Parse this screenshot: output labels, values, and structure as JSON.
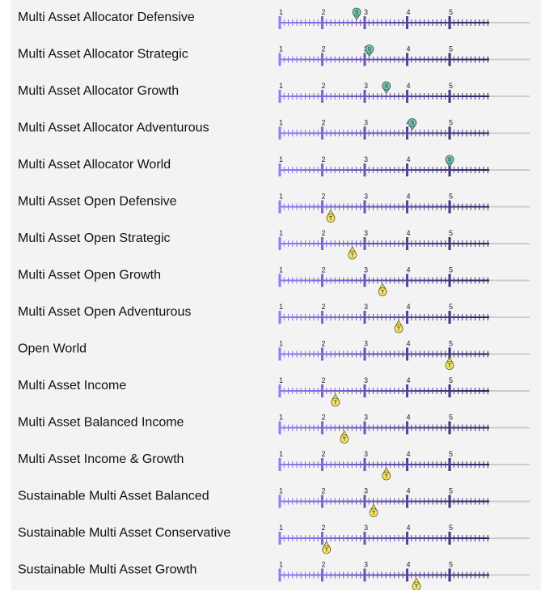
{
  "scale": {
    "xlim": [
      1,
      5
    ],
    "ticks": [
      1,
      2,
      3,
      4,
      5
    ]
  },
  "rows": [
    {
      "name": "Multi Asset Allocator Defensive",
      "marker": "S",
      "value": 2.81
    },
    {
      "name": "Multi Asset Allocator Strategic",
      "marker": "S",
      "value": 3.11
    },
    {
      "name": "Multi Asset Allocator Growth",
      "marker": "S",
      "value": 3.51
    },
    {
      "name": "Multi Asset Allocator Adventurous",
      "marker": "S",
      "value": 4.12
    },
    {
      "name": "Multi Asset Allocator World",
      "marker": "S",
      "value": 5.0
    },
    {
      "name": "Multi Asset Open Defensive",
      "marker": "T",
      "value": 2.2
    },
    {
      "name": "Multi Asset Open Strategic",
      "marker": "T",
      "value": 2.71
    },
    {
      "name": "Multi Asset Open Growth",
      "marker": "T",
      "value": 3.42
    },
    {
      "name": "Multi Asset Open Adventurous",
      "marker": "T",
      "value": 3.8
    },
    {
      "name": "Open World",
      "marker": "T",
      "value": 5.0
    },
    {
      "name": "Multi Asset Income",
      "marker": "T",
      "value": 2.31
    },
    {
      "name": "Multi Asset Balanced Income",
      "marker": "T",
      "value": 2.52
    },
    {
      "name": "Multi Asset Income & Growth",
      "marker": "T",
      "value": 3.51
    },
    {
      "name": "Sustainable Multi Asset Balanced",
      "marker": "T",
      "value": 3.21
    },
    {
      "name": "Sustainable Multi Asset Conservative",
      "marker": "T",
      "value": 2.1
    },
    {
      "name": "Sustainable Multi Asset Growth",
      "marker": "T",
      "value": 4.22
    }
  ]
}
